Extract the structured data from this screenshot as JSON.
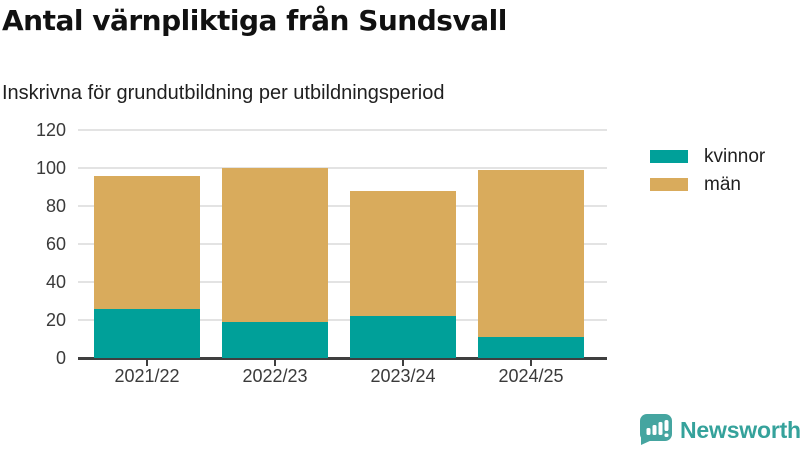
{
  "header": {
    "title": "Antal värnpliktiga från Sundsvall",
    "subtitle": "Inskrivna för grundutbildning per utbildningsperiod"
  },
  "chart_data": {
    "type": "bar",
    "stacked": true,
    "title": "Antal värnpliktiga från Sundsvall",
    "subtitle": "Inskrivna för grundutbildning per utbildningsperiod",
    "categories": [
      "2021/22",
      "2022/23",
      "2023/24",
      "2024/25"
    ],
    "series": [
      {
        "name": "kvinnor",
        "color": "#00a099",
        "values": [
          26,
          19,
          22,
          11
        ]
      },
      {
        "name": "män",
        "color": "#d9ab5c",
        "values": [
          70,
          81,
          66,
          88
        ]
      }
    ],
    "stack_totals": [
      96,
      100,
      88,
      99
    ],
    "xlabel": "",
    "ylabel": "",
    "ylim": [
      0,
      120
    ],
    "yticks": [
      0,
      20,
      40,
      60,
      80,
      100,
      120
    ],
    "grid": true,
    "legend_position": "right"
  },
  "colors": {
    "kvinnor": "#00a099",
    "man": "#d9ab5c",
    "grid": "#e3e3e3",
    "axis": "#3f3f3f",
    "text": "#3a3a3a",
    "logo": "#35a29b"
  },
  "footer": {
    "brand": "Newsworthy"
  }
}
